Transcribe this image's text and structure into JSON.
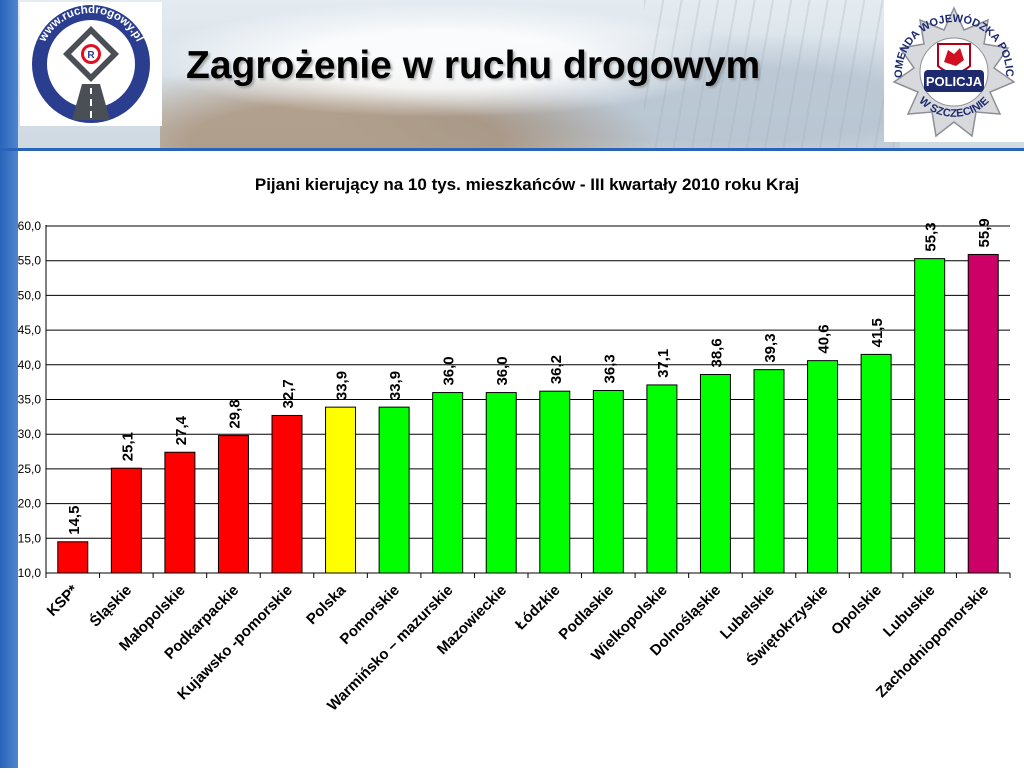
{
  "slide": {
    "title": "Zagrożenie w ruchu drogowym",
    "logo_left_text": "www.ruchdrogowy.pl",
    "logo_left_mark": "R",
    "logo_right_ring": "KOMENDA WOJEWÓDZKA POLICJI",
    "logo_right_bottom": "W SZCZECINIE",
    "logo_right_badge": "POLICJA"
  },
  "colors": {
    "red": "#ff0000",
    "yellow": "#ffff00",
    "green": "#00ff00",
    "magenta": "#cc0066",
    "accent_blue": "#2a64b8"
  },
  "chart_data": {
    "type": "bar",
    "title": "Pijani kierujący na 10 tys. mieszkańców  - III kwartały 2010 roku Kraj",
    "xlabel": "",
    "ylabel": "",
    "ylim": [
      10,
      60
    ],
    "yticks": [
      "10,0",
      "15,0",
      "20,0",
      "25,0",
      "30,0",
      "35,0",
      "40,0",
      "45,0",
      "50,0",
      "55,0",
      "60,0"
    ],
    "grid": true,
    "legend": "none",
    "categories": [
      "KSP*",
      "Śląskie",
      "Małopolskie",
      "Podkarpackie",
      "Kujawsko -pomorskie",
      "Polska",
      "Pomorskie",
      "Warmińsko – mazurskie",
      "Mazowieckie",
      "Łódzkie",
      "Podlaskie",
      "Wielkopolskie",
      "Dolnośląskie",
      "Lubelskie",
      "Świętokrzyskie",
      "Opolskie",
      "Lubuskie",
      "Zachodniopomorskie"
    ],
    "values": [
      14.5,
      25.1,
      27.4,
      29.8,
      32.7,
      33.9,
      33.9,
      36.0,
      36.0,
      36.2,
      36.3,
      37.1,
      38.6,
      39.3,
      40.6,
      41.5,
      55.3,
      55.9
    ],
    "value_labels": [
      "14,5",
      "25,1",
      "27,4",
      "29,8",
      "32,7",
      "33,9",
      "33,9",
      "36,0",
      "36,0",
      "36,2",
      "36,3",
      "37,1",
      "38,6",
      "39,3",
      "40,6",
      "41,5",
      "55,3",
      "55,9"
    ],
    "bar_colors": [
      "#ff0000",
      "#ff0000",
      "#ff0000",
      "#ff0000",
      "#ff0000",
      "#ffff00",
      "#00ff00",
      "#00ff00",
      "#00ff00",
      "#00ff00",
      "#00ff00",
      "#00ff00",
      "#00ff00",
      "#00ff00",
      "#00ff00",
      "#00ff00",
      "#00ff00",
      "#cc0066"
    ]
  }
}
